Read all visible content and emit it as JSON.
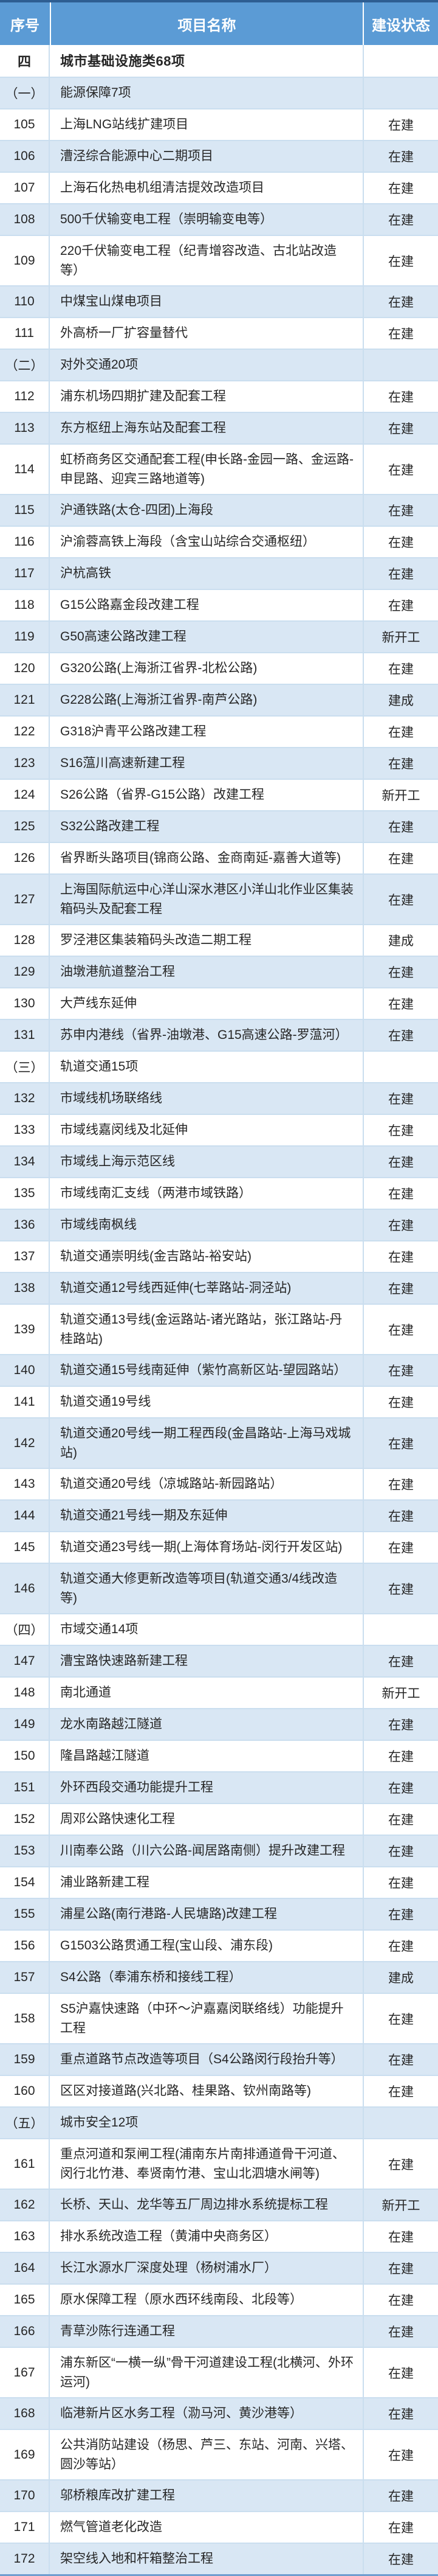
{
  "table": {
    "columns": [
      "序号",
      "项目名称",
      "建设状态"
    ],
    "rows": [
      {
        "no": "四",
        "name": "城市基础设施类68项",
        "status": "",
        "kind": "section"
      },
      {
        "no": "（一）",
        "name": "能源保障7项",
        "status": "",
        "kind": "group"
      },
      {
        "no": "105",
        "name": "上海LNG站线扩建项目",
        "status": "在建",
        "kind": "item"
      },
      {
        "no": "106",
        "name": "漕泾综合能源中心二期项目",
        "status": "在建",
        "kind": "item"
      },
      {
        "no": "107",
        "name": "上海石化热电机组清洁提效改造项目",
        "status": "在建",
        "kind": "item"
      },
      {
        "no": "108",
        "name": "500千伏输变电工程（崇明输变电等）",
        "status": "在建",
        "kind": "item"
      },
      {
        "no": "109",
        "name": "220千伏输变电工程（纪青增容改造、古北站改造等）",
        "status": "在建",
        "kind": "item"
      },
      {
        "no": "110",
        "name": "中煤宝山煤电项目",
        "status": "在建",
        "kind": "item"
      },
      {
        "no": "111",
        "name": "外高桥一厂扩容量替代",
        "status": "在建",
        "kind": "item"
      },
      {
        "no": "（二）",
        "name": "对外交通20项",
        "status": "",
        "kind": "group"
      },
      {
        "no": "112",
        "name": "浦东机场四期扩建及配套工程",
        "status": "在建",
        "kind": "item"
      },
      {
        "no": "113",
        "name": "东方枢纽上海东站及配套工程",
        "status": "在建",
        "kind": "item"
      },
      {
        "no": "114",
        "name": "虹桥商务区交通配套工程(申长路-金园一路、金运路-申昆路、迎宾三路地道等)",
        "status": "在建",
        "kind": "item"
      },
      {
        "no": "115",
        "name": "沪通铁路(太仓-四团)上海段",
        "status": "在建",
        "kind": "item"
      },
      {
        "no": "116",
        "name": "沪渝蓉高铁上海段（含宝山站综合交通枢纽）",
        "status": "在建",
        "kind": "item"
      },
      {
        "no": "117",
        "name": "沪杭高铁",
        "status": "在建",
        "kind": "item"
      },
      {
        "no": "118",
        "name": "G15公路嘉金段改建工程",
        "status": "在建",
        "kind": "item"
      },
      {
        "no": "119",
        "name": "G50高速公路改建工程",
        "status": "新开工",
        "kind": "item"
      },
      {
        "no": "120",
        "name": "G320公路(上海浙江省界-北松公路)",
        "status": "在建",
        "kind": "item"
      },
      {
        "no": "121",
        "name": "G228公路(上海浙江省界-南芦公路)",
        "status": "建成",
        "kind": "item"
      },
      {
        "no": "122",
        "name": "G318沪青平公路改建工程",
        "status": "在建",
        "kind": "item"
      },
      {
        "no": "123",
        "name": "S16蕰川高速新建工程",
        "status": "在建",
        "kind": "item"
      },
      {
        "no": "124",
        "name": "S26公路（省界-G15公路）改建工程",
        "status": "新开工",
        "kind": "item"
      },
      {
        "no": "125",
        "name": "S32公路改建工程",
        "status": "在建",
        "kind": "item"
      },
      {
        "no": "126",
        "name": "省界断头路项目(锦商公路、金商南延-嘉善大道等)",
        "status": "在建",
        "kind": "item"
      },
      {
        "no": "127",
        "name": "上海国际航运中心洋山深水港区小洋山北作业区集装箱码头及配套工程",
        "status": "在建",
        "kind": "item"
      },
      {
        "no": "128",
        "name": "罗泾港区集装箱码头改造二期工程",
        "status": "建成",
        "kind": "item"
      },
      {
        "no": "129",
        "name": "油墩港航道整治工程",
        "status": "在建",
        "kind": "item"
      },
      {
        "no": "130",
        "name": "大芦线东延伸",
        "status": "在建",
        "kind": "item"
      },
      {
        "no": "131",
        "name": "苏申内港线（省界-油墩港、G15高速公路-罗蕰河）",
        "status": "在建",
        "kind": "item"
      },
      {
        "no": "（三）",
        "name": "轨道交通15项",
        "status": "",
        "kind": "group"
      },
      {
        "no": "132",
        "name": "市域线机场联络线",
        "status": "在建",
        "kind": "item"
      },
      {
        "no": "133",
        "name": "市域线嘉闵线及北延伸",
        "status": "在建",
        "kind": "item"
      },
      {
        "no": "134",
        "name": "市域线上海示范区线",
        "status": "在建",
        "kind": "item"
      },
      {
        "no": "135",
        "name": "市域线南汇支线（两港市域铁路）",
        "status": "在建",
        "kind": "item"
      },
      {
        "no": "136",
        "name": "市域线南枫线",
        "status": "在建",
        "kind": "item"
      },
      {
        "no": "137",
        "name": "轨道交通崇明线(金吉路站-裕安站)",
        "status": "在建",
        "kind": "item"
      },
      {
        "no": "138",
        "name": "轨道交通12号线西延伸(七莘路站-洞泾站)",
        "status": "在建",
        "kind": "item"
      },
      {
        "no": "139",
        "name": "轨道交通13号线(金运路站-诸光路站，张江路站-丹桂路站)",
        "status": "在建",
        "kind": "item"
      },
      {
        "no": "140",
        "name": "轨道交通15号线南延伸（紫竹高新区站-望园路站）",
        "status": "在建",
        "kind": "item"
      },
      {
        "no": "141",
        "name": "轨道交通19号线",
        "status": "在建",
        "kind": "item"
      },
      {
        "no": "142",
        "name": "轨道交通20号线一期工程西段(金昌路站-上海马戏城站)",
        "status": "在建",
        "kind": "item"
      },
      {
        "no": "143",
        "name": "轨道交通20号线（凉城路站-新园路站）",
        "status": "在建",
        "kind": "item"
      },
      {
        "no": "144",
        "name": "轨道交通21号线一期及东延伸",
        "status": "在建",
        "kind": "item"
      },
      {
        "no": "145",
        "name": "轨道交通23号线一期(上海体育场站-闵行开发区站)",
        "status": "在建",
        "kind": "item"
      },
      {
        "no": "146",
        "name": "轨道交通大修更新改造等项目(轨道交通3/4线改造等)",
        "status": "在建",
        "kind": "item"
      },
      {
        "no": "（四）",
        "name": "市域交通14项",
        "status": "",
        "kind": "group"
      },
      {
        "no": "147",
        "name": "漕宝路快速路新建工程",
        "status": "在建",
        "kind": "item"
      },
      {
        "no": "148",
        "name": "南北通道",
        "status": "新开工",
        "kind": "item"
      },
      {
        "no": "149",
        "name": "龙水南路越江隧道",
        "status": "在建",
        "kind": "item"
      },
      {
        "no": "150",
        "name": "隆昌路越江隧道",
        "status": "在建",
        "kind": "item"
      },
      {
        "no": "151",
        "name": "外环西段交通功能提升工程",
        "status": "在建",
        "kind": "item"
      },
      {
        "no": "152",
        "name": "周邓公路快速化工程",
        "status": "在建",
        "kind": "item"
      },
      {
        "no": "153",
        "name": "川南奉公路（川六公路-闻居路南侧）提升改建工程",
        "status": "在建",
        "kind": "item"
      },
      {
        "no": "154",
        "name": "浦业路新建工程",
        "status": "在建",
        "kind": "item"
      },
      {
        "no": "155",
        "name": "浦星公路(南行港路-人民塘路)改建工程",
        "status": "在建",
        "kind": "item"
      },
      {
        "no": "156",
        "name": "G1503公路贯通工程(宝山段、浦东段)",
        "status": "在建",
        "kind": "item"
      },
      {
        "no": "157",
        "name": "S4公路（奉浦东桥和接线工程）",
        "status": "建成",
        "kind": "item"
      },
      {
        "no": "158",
        "name": "S5沪嘉快速路（中环～沪嘉嘉闵联络线）功能提升工程",
        "status": "在建",
        "kind": "item"
      },
      {
        "no": "159",
        "name": "重点道路节点改造等项目（S4公路闵行段抬升等）",
        "status": "在建",
        "kind": "item"
      },
      {
        "no": "160",
        "name": "区区对接道路(兴北路、桂果路、钦州南路等)",
        "status": "在建",
        "kind": "item"
      },
      {
        "no": "（五）",
        "name": "城市安全12项",
        "status": "",
        "kind": "group"
      },
      {
        "no": "161",
        "name": "重点河道和泵闸工程(浦南东片南排通道骨干河道、闵行北竹港、奉贤南竹港、宝山北泗塘水闸等)",
        "status": "在建",
        "kind": "item"
      },
      {
        "no": "162",
        "name": "长桥、天山、龙华等五厂周边排水系统提标工程",
        "status": "新开工",
        "kind": "item"
      },
      {
        "no": "163",
        "name": "排水系统改造工程（黄浦中央商务区）",
        "status": "在建",
        "kind": "item"
      },
      {
        "no": "164",
        "name": "长江水源水厂深度处理（杨树浦水厂）",
        "status": "在建",
        "kind": "item"
      },
      {
        "no": "165",
        "name": "原水保障工程（原水西环线南段、北段等）",
        "status": "在建",
        "kind": "item"
      },
      {
        "no": "166",
        "name": "青草沙陈行连通工程",
        "status": "在建",
        "kind": "item"
      },
      {
        "no": "167",
        "name": "浦东新区“一横一纵”骨干河道建设工程(北横河、外环运河)",
        "status": "在建",
        "kind": "item"
      },
      {
        "no": "168",
        "name": "临港新片区水务工程（泐马河、黄沙港等）",
        "status": "在建",
        "kind": "item"
      },
      {
        "no": "169",
        "name": "公共消防站建设（杨思、芦三、东站、河南、兴塔、圆沙等站）",
        "status": "在建",
        "kind": "item"
      },
      {
        "no": "170",
        "name": "邬桥粮库改扩建工程",
        "status": "在建",
        "kind": "item"
      },
      {
        "no": "171",
        "name": "燃气管道老化改造",
        "status": "在建",
        "kind": "item"
      },
      {
        "no": "172",
        "name": "架空线入地和杆箱整治工程",
        "status": "在建",
        "kind": "item"
      }
    ]
  },
  "colors": {
    "header_bg": "#5b9bd5",
    "header_text": "#ffffff",
    "alt_row_bg": "#d9e7f4",
    "row_bg": "#ffffff",
    "grid_line": "#cadeef",
    "top_border": "#2e5e92",
    "bottom_border": "#6f9ecf",
    "body_text": "#262626"
  }
}
